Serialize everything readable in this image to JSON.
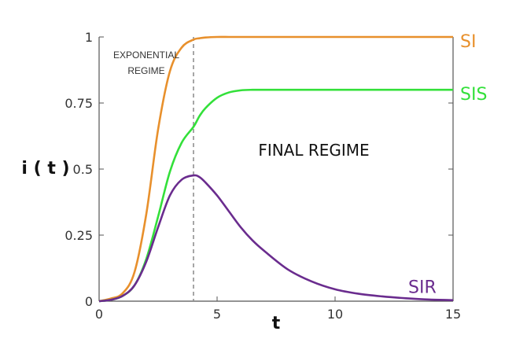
{
  "chart_data": {
    "type": "line",
    "title": "",
    "xlabel": "t",
    "ylabel": "i ( t )",
    "xlim": [
      0,
      15
    ],
    "ylim": [
      0,
      1
    ],
    "xticks": [
      0,
      5,
      10,
      15
    ],
    "yticks": [
      {
        "value": 0,
        "label": "0"
      },
      {
        "value": 0.25,
        "label": "0.25"
      },
      {
        "value": 0.5,
        "label": "0.5"
      },
      {
        "value": 0.75,
        "label": "0.75"
      },
      {
        "value": 1,
        "label": "1"
      }
    ],
    "grid": false,
    "x": [
      0,
      0.5,
      1,
      1.5,
      2,
      2.5,
      3,
      3.5,
      4,
      4.25,
      4.5,
      5,
      5.5,
      6,
      6.5,
      7,
      8,
      9,
      10,
      11,
      12,
      13,
      14,
      15
    ],
    "series": [
      {
        "name": "SI",
        "color": "#e8902c",
        "values": [
          0,
          0.01,
          0.03,
          0.11,
          0.33,
          0.65,
          0.87,
          0.96,
          0.99,
          0.995,
          0.998,
          1.0,
          1.0,
          1.0,
          1.0,
          1.0,
          1.0,
          1.0,
          1.0,
          1.0,
          1.0,
          1.0,
          1.0,
          1.0
        ]
      },
      {
        "name": "SIS",
        "color": "#33e03a",
        "values": [
          0,
          0.005,
          0.02,
          0.06,
          0.16,
          0.32,
          0.49,
          0.6,
          0.66,
          0.7,
          0.73,
          0.77,
          0.79,
          0.798,
          0.8,
          0.8,
          0.8,
          0.8,
          0.8,
          0.8,
          0.8,
          0.8,
          0.8,
          0.8
        ]
      },
      {
        "name": "SIR",
        "color": "#6a2c8e",
        "values": [
          0,
          0.005,
          0.02,
          0.06,
          0.15,
          0.28,
          0.4,
          0.46,
          0.476,
          0.47,
          0.45,
          0.4,
          0.34,
          0.28,
          0.23,
          0.19,
          0.12,
          0.075,
          0.045,
          0.028,
          0.018,
          0.011,
          0.006,
          0.004
        ]
      }
    ],
    "annotations": [
      {
        "text": "EXPONENTIAL",
        "x": 2.0,
        "y": 0.92,
        "style": "small"
      },
      {
        "text": "REGIME",
        "x": 2.0,
        "y": 0.86,
        "style": "small"
      },
      {
        "text": "FINAL REGIME",
        "x": 9.1,
        "y": 0.55,
        "style": "big"
      }
    ],
    "vline": {
      "x": 4.0,
      "style": "dashed",
      "color": "#888888"
    },
    "series_label_positions": [
      {
        "series": "SI",
        "x": 15.3,
        "y": 0.985
      },
      {
        "series": "SIS",
        "x": 15.3,
        "y": 0.785
      },
      {
        "series": "SIR",
        "x": 13.1,
        "y": 0.055
      }
    ]
  }
}
